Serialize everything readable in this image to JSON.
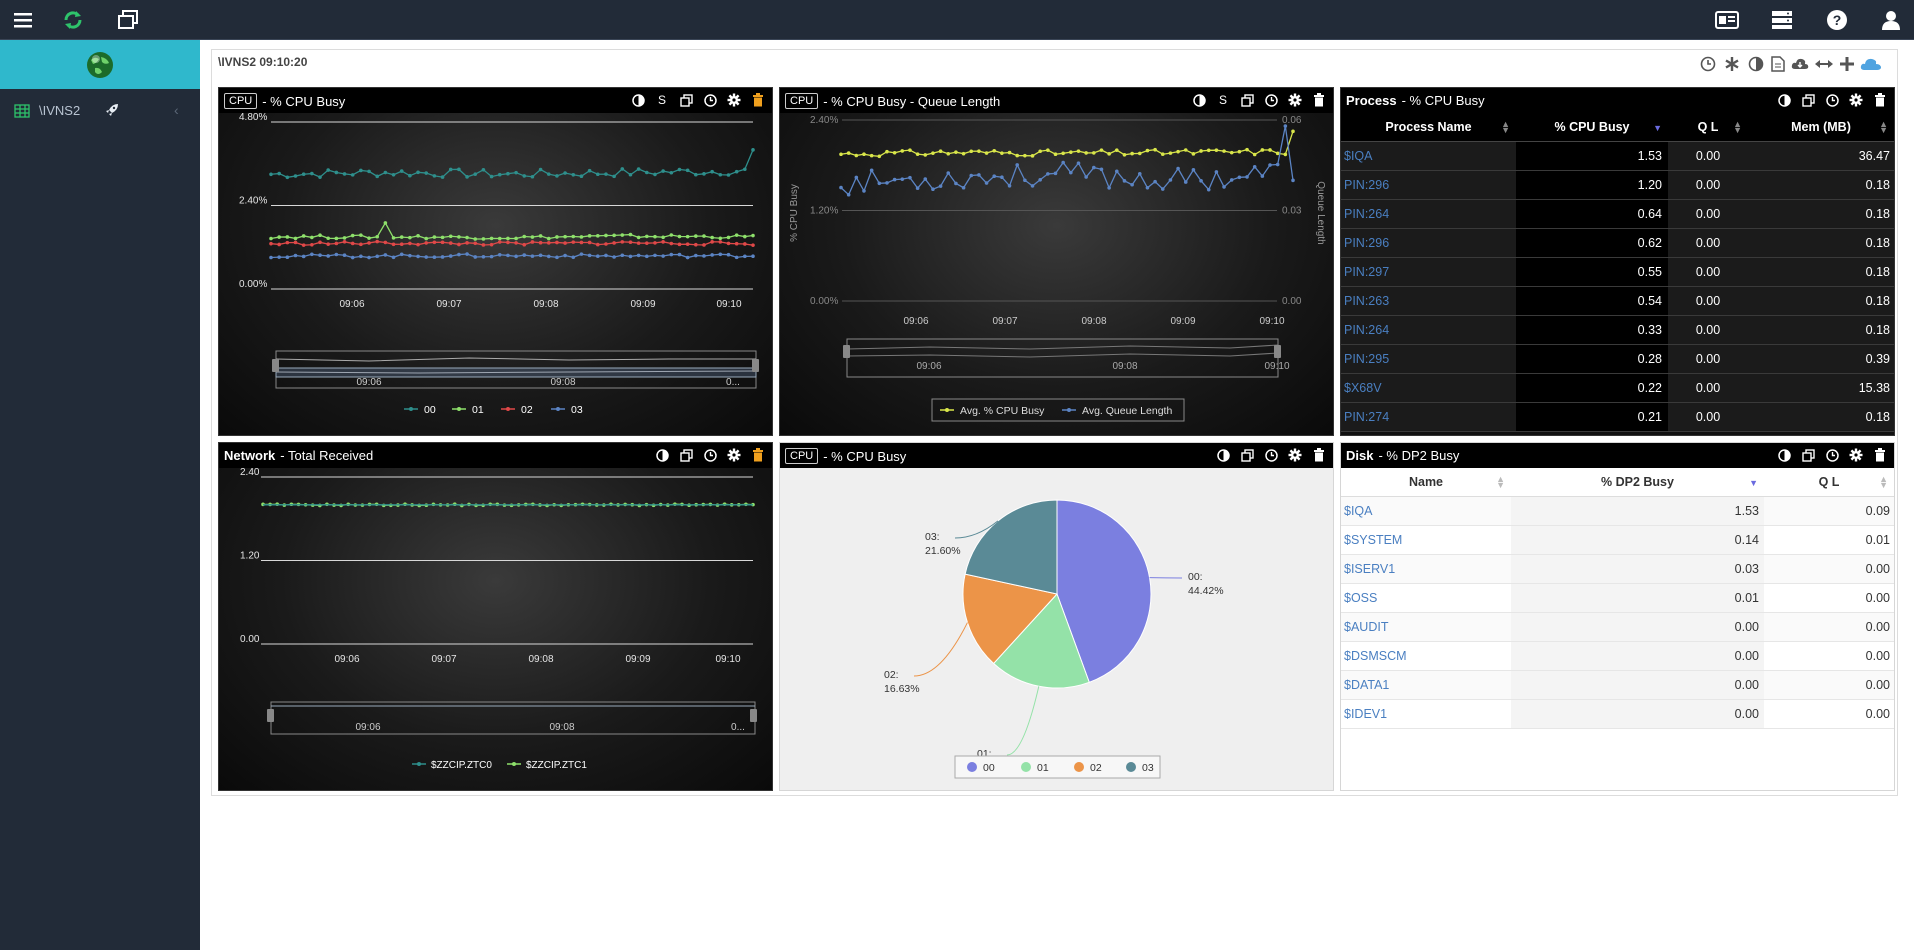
{
  "topbar": {
    "left_icons": [
      "menu-icon",
      "refresh-icon",
      "windows-icon"
    ],
    "right_icons": [
      "dashboard-card-icon",
      "server-icon",
      "help-icon",
      "user-icon"
    ]
  },
  "sidebar": {
    "node_label": "\\IVNS2"
  },
  "main": {
    "title": "\\IVNS2  09:10:20",
    "header_icons": [
      "clock-icon",
      "asterisk-icon",
      "contrast-icon",
      "document-icon",
      "cloud-download-icon",
      "resize-horizontal-icon",
      "plus-icon",
      "cloud-icon"
    ]
  },
  "widgets": {
    "cpu_busy": {
      "tag": "CPU",
      "title": "- % CPU Busy",
      "s_label": "S",
      "y_ticks": [
        "4.80%",
        "2.40%",
        "0.00%"
      ],
      "x_ticks": [
        "09:06",
        "09:07",
        "09:08",
        "09:09",
        "09:10"
      ],
      "nav_ticks": [
        "09:06",
        "09:08",
        "0..."
      ],
      "legend": [
        "00",
        "01",
        "02",
        "03"
      ]
    },
    "cpu_queue": {
      "tag": "CPU",
      "title": "- % CPU Busy - Queue Length",
      "s_label": "S",
      "y_ticks": [
        "2.40%",
        "1.20%",
        "0.00%"
      ],
      "y2_ticks": [
        "0.06",
        "0.03",
        "0.00"
      ],
      "y_label": "% CPU Busy",
      "y2_label": "Queue Length",
      "x_ticks": [
        "09:06",
        "09:07",
        "09:08",
        "09:09",
        "09:10"
      ],
      "nav_ticks": [
        "09:06",
        "09:08",
        "09:10"
      ],
      "legend": [
        "Avg. % CPU Busy",
        "Avg. Queue Length"
      ]
    },
    "process": {
      "title": "Process",
      "subtitle": "- % CPU Busy",
      "columns": [
        "Process Name",
        "% CPU Busy",
        "Q L",
        "Mem (MB)"
      ],
      "rows": [
        [
          "$IQA",
          "1.53",
          "0.00",
          "36.47"
        ],
        [
          "PIN:296",
          "1.20",
          "0.00",
          "0.18"
        ],
        [
          "PIN:264",
          "0.64",
          "0.00",
          "0.18"
        ],
        [
          "PIN:296",
          "0.62",
          "0.00",
          "0.18"
        ],
        [
          "PIN:297",
          "0.55",
          "0.00",
          "0.18"
        ],
        [
          "PIN:263",
          "0.54",
          "0.00",
          "0.18"
        ],
        [
          "PIN:264",
          "0.33",
          "0.00",
          "0.18"
        ],
        [
          "PIN:295",
          "0.28",
          "0.00",
          "0.39"
        ],
        [
          "$X68V",
          "0.22",
          "0.00",
          "15.38"
        ],
        [
          "PIN:274",
          "0.21",
          "0.00",
          "0.18"
        ]
      ]
    },
    "network": {
      "title": "Network",
      "subtitle": "- Total Received",
      "y_ticks": [
        "2.40",
        "1.20",
        "0.00"
      ],
      "x_ticks": [
        "09:06",
        "09:07",
        "09:08",
        "09:09",
        "09:10"
      ],
      "nav_ticks": [
        "09:06",
        "09:08",
        "0..."
      ],
      "legend": [
        "$ZZCIP.ZTC0",
        "$ZZCIP.ZTC1"
      ]
    },
    "cpu_pie": {
      "tag": "CPU",
      "title": "- % CPU Busy",
      "legend": [
        "00",
        "01",
        "02",
        "03"
      ],
      "labels": [
        {
          "name": "00:",
          "value": "44.42%"
        },
        {
          "name": "01:",
          "value": "17.34%"
        },
        {
          "name": "02:",
          "value": "16.63%"
        },
        {
          "name": "03:",
          "value": "21.60%"
        }
      ]
    },
    "disk": {
      "title": "Disk",
      "subtitle": "- % DP2 Busy",
      "columns": [
        "Name",
        "% DP2 Busy",
        "Q L"
      ],
      "rows": [
        [
          "$IQA",
          "1.53",
          "0.09"
        ],
        [
          "$SYSTEM",
          "0.14",
          "0.01"
        ],
        [
          "$ISERV1",
          "0.03",
          "0.00"
        ],
        [
          "$OSS",
          "0.01",
          "0.00"
        ],
        [
          "$AUDIT",
          "0.00",
          "0.00"
        ],
        [
          "$DSMSCM",
          "0.00",
          "0.00"
        ],
        [
          "$DATA1",
          "0.00",
          "0.00"
        ],
        [
          "$IDEV1",
          "0.00",
          "0.00"
        ]
      ]
    }
  },
  "colors": {
    "topbar": "#222b38",
    "sidebar_active": "#2fb8cc",
    "series_00": "#2e8f8c",
    "series_01": "#8ee06b",
    "series_02": "#e04848",
    "series_03": "#5b84c4",
    "queue_series": "#d9e64a",
    "pie_00": "#7b7fe0",
    "pie_01": "#94e2a8",
    "pie_02": "#ec9448",
    "pie_03": "#5a8a96",
    "link_blue": "#4a7fc1"
  },
  "chart_data": [
    {
      "type": "line",
      "title": "% CPU Busy",
      "x": [
        "09:06",
        "09:07",
        "09:08",
        "09:09",
        "09:10"
      ],
      "ylim": [
        0,
        4.8
      ],
      "y_unit": "%",
      "series": [
        {
          "name": "00",
          "values": [
            3.3,
            3.35,
            3.3,
            3.35,
            3.4
          ]
        },
        {
          "name": "01",
          "values": [
            1.5,
            1.5,
            1.48,
            1.52,
            1.5
          ]
        },
        {
          "name": "02",
          "values": [
            1.3,
            1.32,
            1.3,
            1.33,
            1.3
          ]
        },
        {
          "name": "03",
          "values": [
            0.95,
            0.95,
            0.96,
            0.95,
            0.96
          ]
        }
      ]
    },
    {
      "type": "line",
      "title": "% CPU Busy - Queue Length",
      "x": [
        "09:06",
        "09:07",
        "09:08",
        "09:09",
        "09:10"
      ],
      "ylim": [
        0,
        2.4
      ],
      "y2lim": [
        0,
        0.06
      ],
      "series": [
        {
          "name": "Avg. % CPU Busy",
          "values": [
            1.95,
            1.97,
            1.96,
            1.97,
            1.98
          ]
        },
        {
          "name": "Avg. Queue Length",
          "values": [
            0.039,
            0.041,
            0.042,
            0.04,
            0.043
          ]
        }
      ]
    },
    {
      "type": "line",
      "title": "Total Received",
      "x": [
        "09:06",
        "09:07",
        "09:08",
        "09:09",
        "09:10"
      ],
      "ylim": [
        0,
        2.4
      ],
      "series": [
        {
          "name": "$ZZCIP.ZTC0",
          "values": [
            2.0,
            2.0,
            2.0,
            2.0,
            2.0
          ]
        },
        {
          "name": "$ZZCIP.ZTC1",
          "values": [
            2.0,
            2.0,
            2.0,
            2.0,
            2.0
          ]
        }
      ]
    },
    {
      "type": "pie",
      "title": "% CPU Busy",
      "categories": [
        "00",
        "01",
        "02",
        "03"
      ],
      "values": [
        44.42,
        17.34,
        16.63,
        21.6
      ]
    }
  ]
}
